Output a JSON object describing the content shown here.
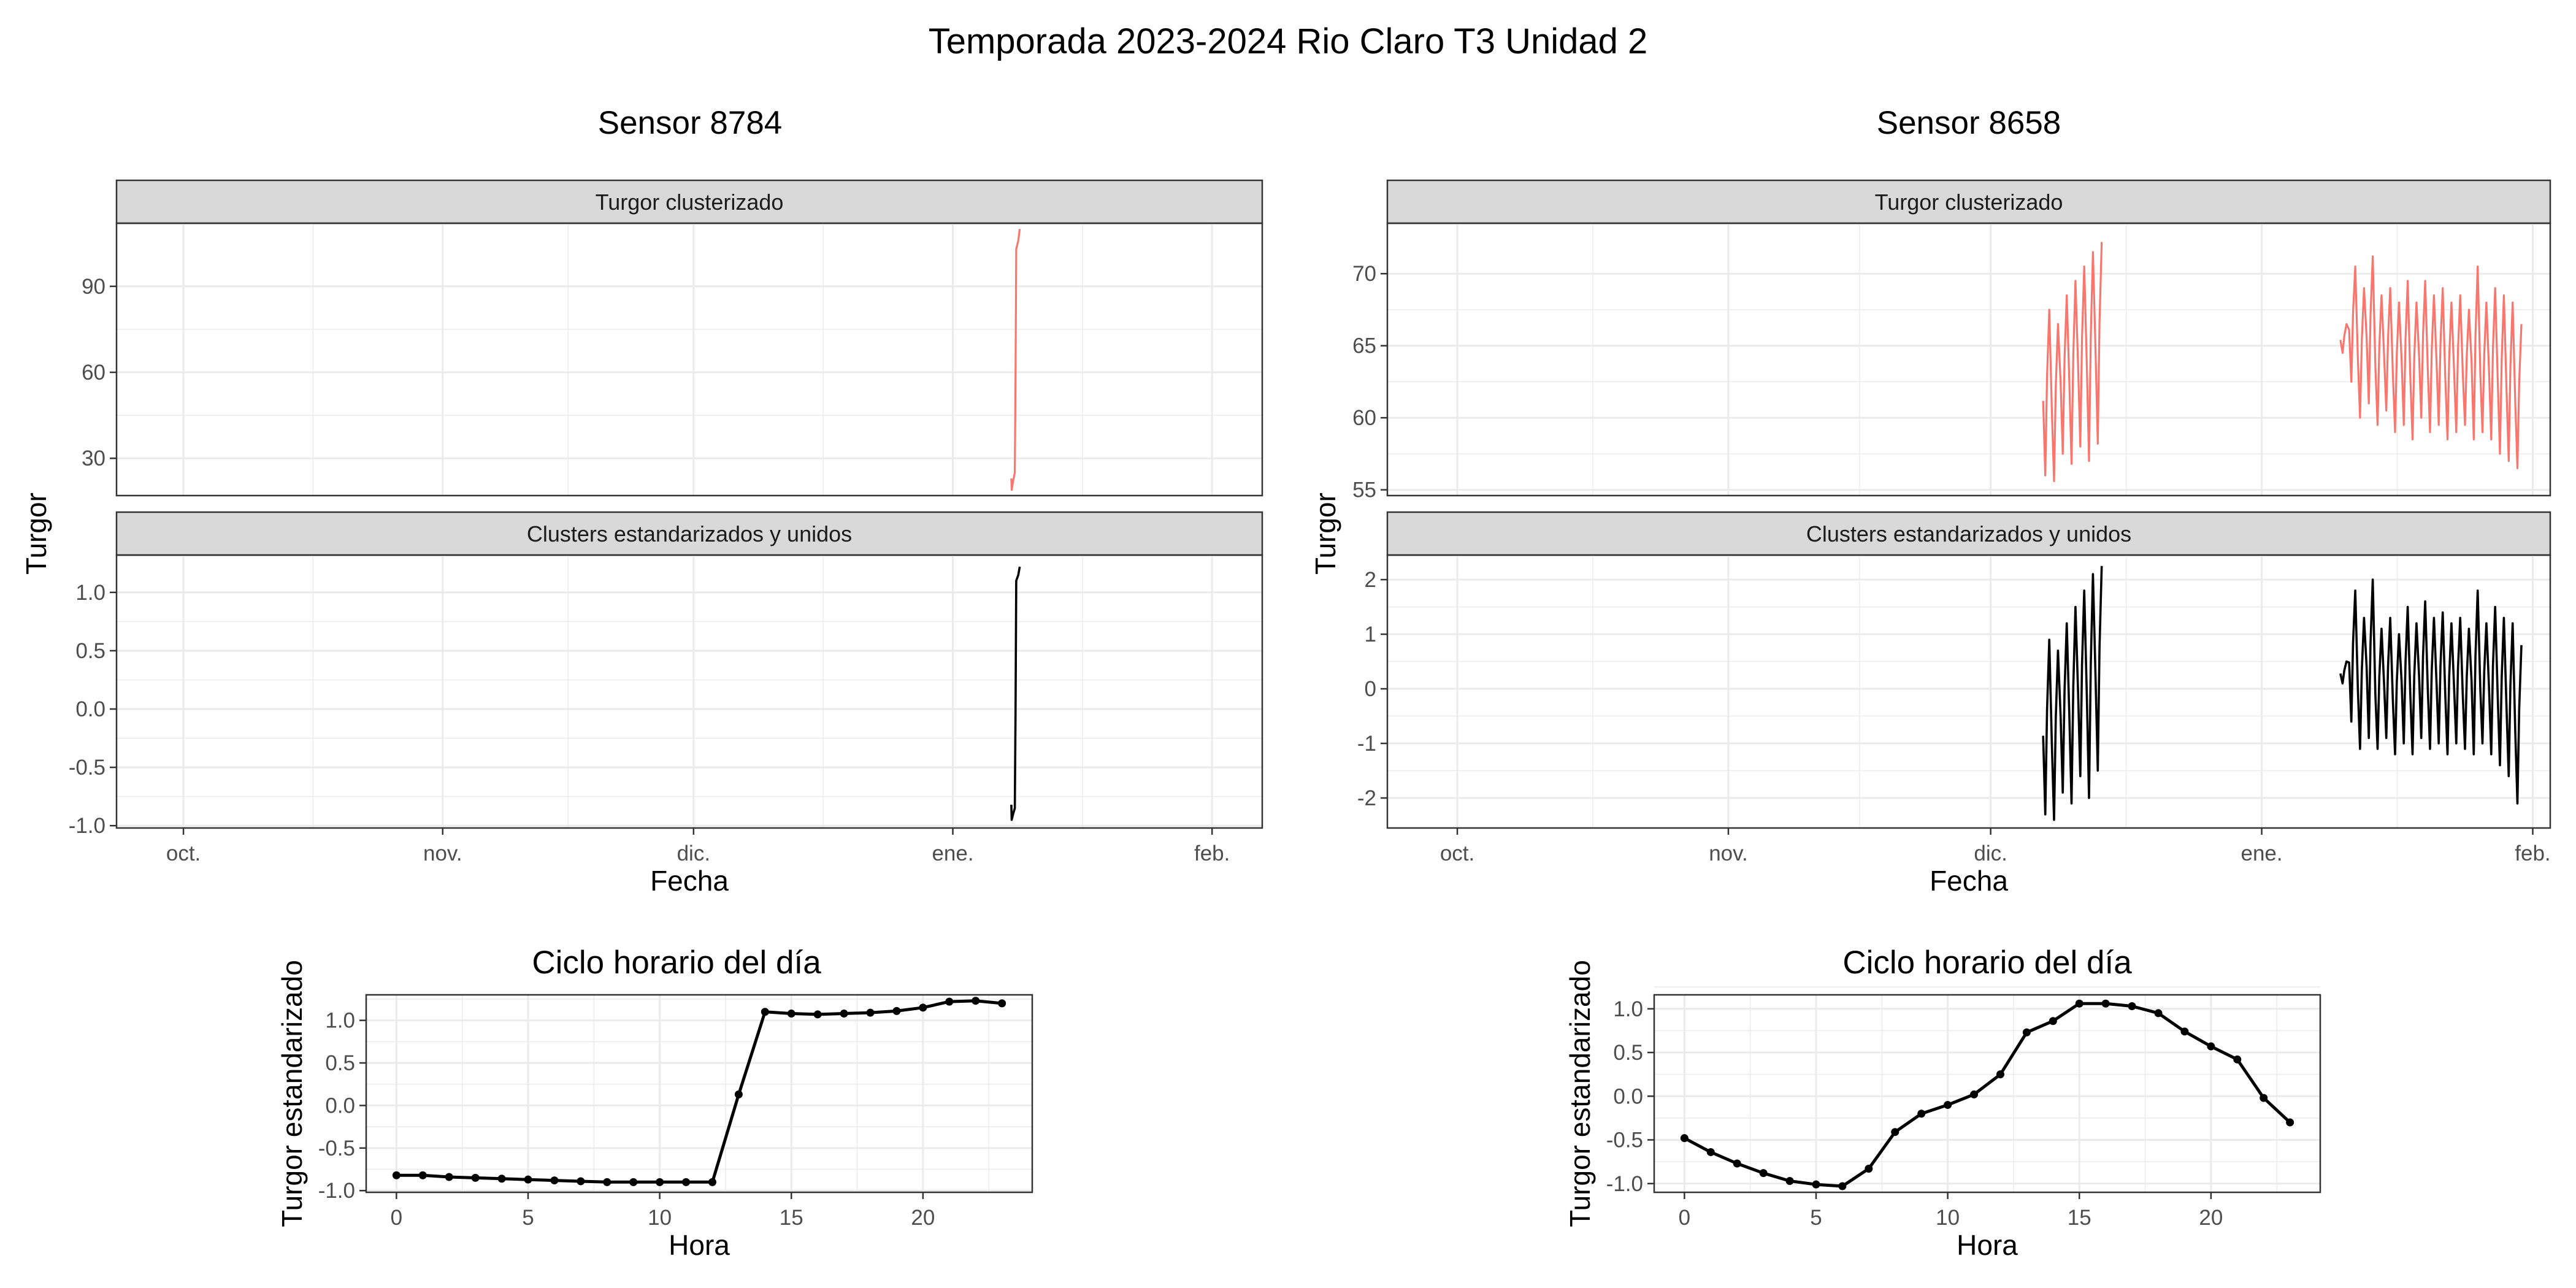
{
  "title": "Temporada 2023-2024 Rio Claro T3 Unidad 2",
  "sensor_titles": [
    "Sensor 8784",
    "Sensor 8658"
  ],
  "facet_labels": [
    "Turgor clusterizado",
    "Clusters estandarizados y unidos"
  ],
  "shared_ylabel": "Turgor",
  "xlabel_fecha": "Fecha",
  "date_ticks": [
    "oct.",
    "nov.",
    "dic.",
    "ene.",
    "feb."
  ],
  "cycle_title": "Ciclo horario del día",
  "cycle_ylabel": "Turgor estandarizado",
  "cycle_xlabel": "Hora",
  "colors": {
    "raw_series": "#F8766D",
    "standardized_series": "#000000",
    "strip_fill": "#D9D9D9",
    "grid": "#EBEBEB"
  },
  "chart_data": [
    {
      "id": "sensor8784-raw",
      "type": "line",
      "facet": "Turgor clusterizado",
      "x_type": "date",
      "xlim": [
        "2023-09-23",
        "2024-02-07"
      ],
      "x_ticks": [
        "2023-10-01",
        "2023-11-01",
        "2023-12-01",
        "2024-01-01",
        "2024-02-01"
      ],
      "y_ticks": [
        30,
        60,
        90
      ],
      "ylim": [
        17,
        112
      ],
      "series": [
        {
          "color": "#F8766D",
          "points": [
            [
              "2024-01-08T00:00",
              23
            ],
            [
              "2024-01-08T01:00",
              19
            ],
            [
              "2024-01-08T05:00",
              22
            ],
            [
              "2024-01-08T10:00",
              25
            ],
            [
              "2024-01-08T12:00",
              60
            ],
            [
              "2024-01-08T14:00",
              103
            ],
            [
              "2024-01-08T20:00",
              106
            ],
            [
              "2024-01-09T00:00",
              110
            ]
          ]
        }
      ]
    },
    {
      "id": "sensor8784-std",
      "type": "line",
      "facet": "Clusters estandarizados y unidos",
      "x_type": "date",
      "xlim": [
        "2023-09-23",
        "2024-02-07"
      ],
      "x_ticks": [
        "2023-10-01",
        "2023-11-01",
        "2023-12-01",
        "2024-01-01",
        "2024-02-01"
      ],
      "y_ticks": [
        -1.0,
        -0.5,
        0.0,
        0.5,
        1.0
      ],
      "ylim": [
        -1.02,
        1.32
      ],
      "series": [
        {
          "color": "#000000",
          "points": [
            [
              "2024-01-08T00:00",
              -0.82
            ],
            [
              "2024-01-08T01:00",
              -0.95
            ],
            [
              "2024-01-08T05:00",
              -0.9
            ],
            [
              "2024-01-08T10:00",
              -0.85
            ],
            [
              "2024-01-08T12:00",
              0.0
            ],
            [
              "2024-01-08T14:00",
              1.1
            ],
            [
              "2024-01-08T20:00",
              1.15
            ],
            [
              "2024-01-09T00:00",
              1.22
            ]
          ]
        }
      ]
    },
    {
      "id": "sensor8658-raw",
      "type": "line",
      "facet": "Turgor clusterizado",
      "x_type": "date",
      "xlim": [
        "2023-09-23",
        "2024-02-03"
      ],
      "x_ticks": [
        "2023-10-01",
        "2023-11-01",
        "2023-12-01",
        "2024-01-01",
        "2024-02-01"
      ],
      "y_ticks": [
        55,
        60,
        65,
        70
      ],
      "ylim": [
        54.6,
        73.5
      ],
      "series": [
        {
          "color": "#F8766D",
          "segments": [
            {
              "start": "2023-12-07",
              "day_min": [
                56.0,
                55.6,
                57.5,
                56.8,
                58.0,
                57.0,
                58.2
              ],
              "day_max": [
                67.5,
                66.5,
                68.5,
                69.5,
                70.5,
                71.5,
                72.2
              ]
            },
            {
              "start": "2024-01-10",
              "day_min": [
                64.5,
                62.5,
                60.0,
                61.0,
                59.5,
                60.5,
                59.0,
                59.5,
                58.5,
                60.0,
                59.0,
                59.5,
                58.5,
                59.0,
                59.5,
                58.5,
                59.0,
                58.5,
                57.5,
                57.0,
                56.5
              ],
              "day_max": [
                66.5,
                70.5,
                69.0,
                71.2,
                68.5,
                69.0,
                68.0,
                69.5,
                68.0,
                69.5,
                68.5,
                69.0,
                68.0,
                68.5,
                67.5,
                70.5,
                68.0,
                69.0,
                68.5,
                68.0,
                66.5
              ]
            }
          ]
        }
      ]
    },
    {
      "id": "sensor8658-std",
      "type": "line",
      "facet": "Clusters estandarizados y unidos",
      "x_type": "date",
      "xlim": [
        "2023-09-23",
        "2024-02-03"
      ],
      "x_ticks": [
        "2023-10-01",
        "2023-11-01",
        "2023-12-01",
        "2024-01-01",
        "2024-02-01"
      ],
      "y_ticks": [
        -2,
        -1,
        0,
        1,
        2
      ],
      "ylim": [
        -2.55,
        2.45
      ],
      "series": [
        {
          "color": "#000000",
          "segments": [
            {
              "start": "2023-12-07",
              "day_min": [
                -2.3,
                -2.4,
                -1.9,
                -2.1,
                -1.6,
                -2.0,
                -1.5
              ],
              "day_max": [
                0.9,
                0.7,
                1.2,
                1.5,
                1.8,
                2.1,
                2.25
              ]
            },
            {
              "start": "2024-01-10",
              "day_min": [
                0.1,
                -0.6,
                -1.1,
                -0.9,
                -1.1,
                -0.9,
                -1.2,
                -1.0,
                -1.2,
                -0.9,
                -1.1,
                -1.0,
                -1.2,
                -1.0,
                -1.1,
                -1.2,
                -1.0,
                -1.2,
                -1.4,
                -1.6,
                -2.1
              ],
              "day_max": [
                0.5,
                1.8,
                1.3,
                2.0,
                1.1,
                1.3,
                1.0,
                1.5,
                1.2,
                1.6,
                1.3,
                1.4,
                1.2,
                1.3,
                1.1,
                1.8,
                1.2,
                1.5,
                1.3,
                1.2,
                0.8
              ]
            }
          ]
        }
      ]
    },
    {
      "id": "cycle-8784",
      "type": "line",
      "title": "Ciclo horario del día",
      "xlabel": "Hora",
      "ylabel": "Turgor estandarizado",
      "xlim": [
        -1.15,
        24.15
      ],
      "ylim": [
        -1.02,
        1.3
      ],
      "x_ticks": [
        0,
        5,
        10,
        15,
        20
      ],
      "y_ticks": [
        -1.0,
        -0.5,
        0.0,
        0.5,
        1.0
      ],
      "x": [
        0,
        1,
        2,
        3,
        4,
        5,
        6,
        7,
        8,
        9,
        10,
        11,
        12,
        13,
        14,
        15,
        16,
        17,
        18,
        19,
        20,
        21,
        22,
        23
      ],
      "y": [
        -0.82,
        -0.82,
        -0.84,
        -0.85,
        -0.86,
        -0.87,
        -0.88,
        -0.89,
        -0.9,
        -0.9,
        -0.9,
        -0.9,
        -0.9,
        0.13,
        1.1,
        1.08,
        1.07,
        1.08,
        1.09,
        1.11,
        1.15,
        1.22,
        1.23,
        1.2
      ]
    },
    {
      "id": "cycle-8658",
      "type": "line",
      "title": "Ciclo horario del día",
      "xlabel": "Hora",
      "ylabel": "Turgor estandarizado",
      "xlim": [
        -1.15,
        24.15
      ],
      "ylim": [
        -1.1,
        1.16
      ],
      "x_ticks": [
        0,
        5,
        10,
        15,
        20
      ],
      "y_ticks": [
        -1.0,
        -0.5,
        0.0,
        0.5,
        1.0
      ],
      "x": [
        0,
        1,
        2,
        3,
        4,
        5,
        6,
        7,
        8,
        9,
        10,
        11,
        12,
        13,
        14,
        15,
        16,
        17,
        18,
        19,
        20,
        21,
        22,
        23
      ],
      "y": [
        -0.48,
        -0.64,
        -0.77,
        -0.88,
        -0.97,
        -1.01,
        -1.03,
        -0.83,
        -0.41,
        -0.2,
        -0.1,
        0.02,
        0.25,
        0.73,
        0.86,
        1.06,
        1.06,
        1.03,
        0.95,
        0.74,
        0.57,
        0.42,
        -0.02,
        -0.3
      ]
    }
  ]
}
